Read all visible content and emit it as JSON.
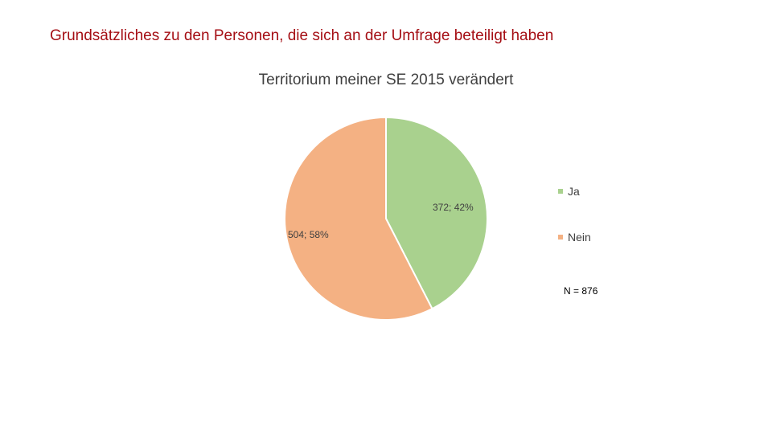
{
  "page_title": "Grundsätzliches zu den Personen, die sich an der Umfrage beteiligt haben",
  "sample_size": "N = 876",
  "colors": {
    "title": "#a50f15",
    "ja": "#a9d18e",
    "nein": "#f4b183",
    "label": "#404040"
  },
  "chart_data": {
    "type": "pie",
    "title": "Territorium meiner SE 2015 verändert",
    "slices": [
      {
        "name": "Ja",
        "value": 372,
        "percent": 42,
        "label": "372; 42%",
        "color": "#a9d18e"
      },
      {
        "name": "Nein",
        "value": 504,
        "percent": 58,
        "label": "504; 58%",
        "color": "#f4b183"
      }
    ],
    "legend": [
      "Ja",
      "Nein"
    ],
    "legend_position": "right"
  }
}
